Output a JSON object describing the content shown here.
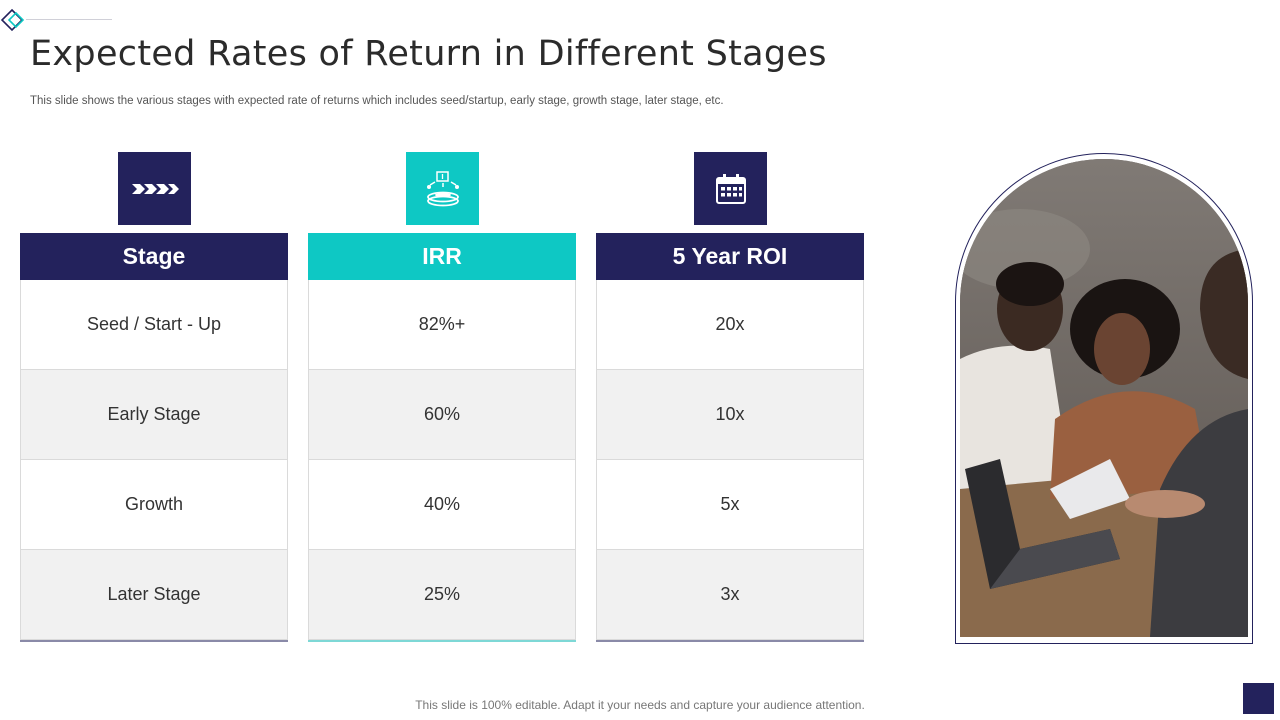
{
  "title": "Expected Rates of Return in Different Stages",
  "subtitle": "This slide shows the various stages with expected rate of returns which includes seed/startup, early stage, growth stage, later stage, etc.",
  "footer": "This slide is 100% editable. Adapt it your needs and capture your audience attention.",
  "colors": {
    "navy": "#23225c",
    "teal": "#0ec8c4"
  },
  "icons": {
    "stage": "chevrons-icon",
    "irr": "money-growth-icon",
    "roi": "calendar-icon"
  },
  "table": {
    "headers": [
      "Stage",
      "IRR",
      "5 Year ROI"
    ],
    "rows": [
      [
        "Seed / Start - Up",
        "82%+",
        "20x"
      ],
      [
        "Early Stage",
        "60%",
        "10x"
      ],
      [
        "Growth",
        "40%",
        "5x"
      ],
      [
        "Later Stage",
        "25%",
        "3x"
      ]
    ]
  }
}
